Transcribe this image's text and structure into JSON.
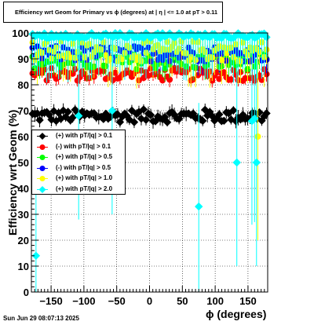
{
  "title": "Efficiency wrt Geom for Primary vs ϕ (degrees) at |  η  | <= 1.0 at pT > 0.11",
  "timestamp": "Sun Jun 29 08:07:13 2025",
  "chart_data": {
    "type": "scatter",
    "xlabel": "ϕ (degrees)",
    "ylabel": "Efficiency wrt Geom (%)",
    "xlim": [
      -180,
      180
    ],
    "ylim": [
      0,
      100
    ],
    "x_ticks": [
      -150,
      -100,
      -50,
      0,
      50,
      100,
      150
    ],
    "y_ticks": [
      0,
      10,
      20,
      30,
      40,
      50,
      60,
      70,
      80,
      90,
      100
    ],
    "grid": true,
    "legend_position": "middle-left",
    "series": [
      {
        "name": "(+) with pT/|q| > 0.1",
        "color": "#000000",
        "marker": "diamond-filled",
        "mean": 68,
        "spread": 2.5,
        "err": 2,
        "outliers": []
      },
      {
        "name": "(-) with pT/|q| > 0.1",
        "color": "#ff0000",
        "marker": "circle-filled",
        "mean": 84,
        "spread": 2.5,
        "err": 2,
        "outliers": []
      },
      {
        "name": "(+) with pT/|q| > 0.5",
        "color": "#00ff00",
        "marker": "circle-filled",
        "mean": 89,
        "spread": 3,
        "err": 4,
        "outliers": []
      },
      {
        "name": "(-) with pT/|q| > 0.5",
        "color": "#0000ff",
        "marker": "circle-filled",
        "mean": 92,
        "spread": 3,
        "err": 4,
        "outliers": []
      },
      {
        "name": "(+) with pT/|q| > 1.0",
        "color": "#ffff00",
        "marker": "circle-filled",
        "mean": 93,
        "spread": 4,
        "err": 8,
        "outliers": [
          [
            165,
            60
          ]
        ]
      },
      {
        "name": "(+) with pT/|q| > 2.0",
        "color": "#00ffff",
        "marker": "diamond-filled",
        "mean": 97,
        "spread": 3,
        "err": 12,
        "outliers": [
          [
            -173,
            14
          ],
          [
            75,
            33
          ],
          [
            133,
            50
          ],
          [
            163,
            50
          ],
          [
            -108,
            68
          ],
          [
            -57,
            70
          ],
          [
            156,
            66
          ],
          [
            160,
            67
          ]
        ]
      }
    ]
  }
}
